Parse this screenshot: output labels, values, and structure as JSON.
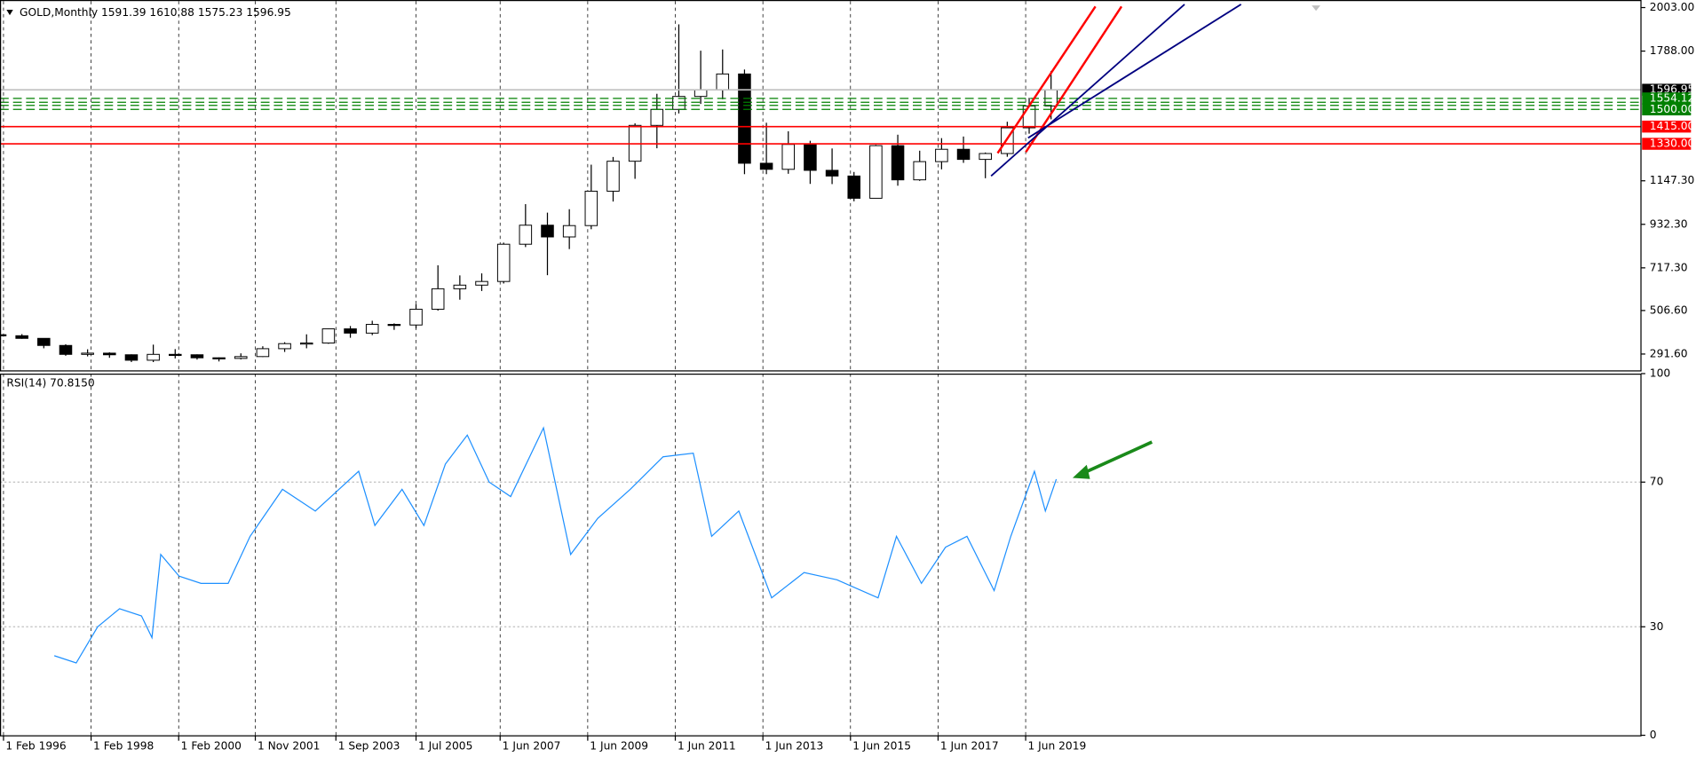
{
  "chart_data": [
    {
      "type": "candlestick",
      "title": "GOLD,Monthly  1591.39 1610.88 1575.23 1596.95",
      "x": [
        1996.0,
        1996.5,
        1997.0,
        1997.5,
        1998.0,
        1998.5,
        1999.0,
        1999.5,
        2000.0,
        2000.5,
        2001.0,
        2001.5,
        2002.0,
        2002.5,
        2003.0,
        2003.5,
        2004.0,
        2004.5,
        2005.0,
        2005.5,
        2006.0,
        2006.5,
        2007.0,
        2007.5,
        2008.0,
        2008.5,
        2009.0,
        2009.5,
        2010.0,
        2010.5,
        2011.0,
        2011.5,
        2012.0,
        2012.5,
        2013.0,
        2013.5,
        2014.0,
        2014.5,
        2015.0,
        2015.5,
        2016.0,
        2016.5,
        2017.0,
        2017.5,
        2018.0,
        2018.5,
        2019.0,
        2019.5,
        2020.0
      ],
      "open": [
        387,
        382,
        369,
        334,
        290,
        296,
        288,
        261,
        290,
        288,
        273,
        270,
        279,
        318,
        343,
        346,
        416,
        395,
        438,
        435,
        513,
        614,
        632,
        650,
        834,
        928,
        870,
        926,
        1096,
        1244,
        1421,
        1500,
        1564,
        1597,
        1675,
        1234,
        1204,
        1327,
        1199,
        1171,
        1061,
        1321,
        1152,
        1242,
        1303,
        1253,
        1282,
        1409,
        1517
      ],
      "high": [
        415,
        390,
        370,
        340,
        315,
        300,
        290,
        338,
        316,
        290,
        275,
        295,
        330,
        350,
        389,
        417,
        430,
        456,
        443,
        538,
        730,
        680,
        690,
        842,
        1032,
        990,
        1007,
        1227,
        1265,
        1431,
        1577,
        1920,
        1790,
        1796,
        1697,
        1434,
        1392,
        1345,
        1307,
        1191,
        1325,
        1375,
        1296,
        1358,
        1366,
        1287,
        1439,
        1557,
        1690
      ],
      "low": [
        380,
        367,
        320,
        283,
        280,
        273,
        252,
        252,
        270,
        264,
        255,
        265,
        277,
        302,
        320,
        342,
        372,
        385,
        411,
        418,
        506,
        560,
        603,
        640,
        820,
        681,
        810,
        908,
        1045,
        1157,
        1308,
        1480,
        1527,
        1550,
        1180,
        1180,
        1182,
        1132,
        1131,
        1046,
        1061,
        1123,
        1147,
        1204,
        1236,
        1160,
        1266,
        1380,
        1451
      ],
      "close": [
        382,
        369,
        334,
        290,
        296,
        288,
        261,
        290,
        288,
        273,
        270,
        279,
        318,
        343,
        346,
        416,
        395,
        438,
        435,
        513,
        614,
        632,
        650,
        834,
        928,
        870,
        926,
        1096,
        1244,
        1421,
        1500,
        1564,
        1597,
        1675,
        1234,
        1204,
        1327,
        1199,
        1171,
        1061,
        1321,
        1152,
        1242,
        1303,
        1253,
        1282,
        1409,
        1517,
        1596.95
      ],
      "up_color": "#ffffff",
      "down_color": "#000000",
      "outline": "#000000",
      "xlim": [
        1996.0,
        2033.47
      ],
      "ylim": [
        211,
        2035
      ],
      "yticks": [
        {
          "value": 2003,
          "label": "2003.00"
        },
        {
          "value": 1788,
          "label": "1788.00"
        },
        {
          "value": 1147.3,
          "label": "1147.30"
        },
        {
          "value": 932.3,
          "label": "932.30"
        },
        {
          "value": 717.3,
          "label": "717.30"
        },
        {
          "value": 506.6,
          "label": "506.60"
        },
        {
          "value": 291.6,
          "label": "291.60"
        }
      ],
      "xticks": [
        {
          "value": 1996.08,
          "label": "1 Feb 1996"
        },
        {
          "value": 1998.08,
          "label": "1 Feb 1998"
        },
        {
          "value": 2000.08,
          "label": "1 Feb 2000"
        },
        {
          "value": 2001.83,
          "label": "1 Nov 2001"
        },
        {
          "value": 2003.67,
          "label": "1 Sep 2003"
        },
        {
          "value": 2005.5,
          "label": "1 Jul 2005"
        },
        {
          "value": 2007.42,
          "label": "1 Jun 2007"
        },
        {
          "value": 2009.42,
          "label": "1 Jun 2009"
        },
        {
          "value": 2011.42,
          "label": "1 Jun 2011"
        },
        {
          "value": 2013.42,
          "label": "1 Jun 2013"
        },
        {
          "value": 2015.42,
          "label": "1 Jun 2015"
        },
        {
          "value": 2017.42,
          "label": "1 Jun 2017"
        },
        {
          "value": 2019.42,
          "label": "1 Jun 2019"
        }
      ],
      "grid": true,
      "levels": [
        {
          "price": 1596.95,
          "label": "1596.95",
          "color": "#c0c0c0",
          "badge": "#000000",
          "dashed": false
        },
        {
          "price": 1554.12,
          "label": "1554.12",
          "color": "#008000",
          "badge": "#008000",
          "dashed": true
        },
        {
          "price": 1535,
          "color": "#008000",
          "dashed": true
        },
        {
          "price": 1520,
          "color": "#008000",
          "dashed": true
        },
        {
          "price": 1500,
          "label": "1500.00",
          "color": "#008000",
          "badge": "#008000",
          "dashed": true
        },
        {
          "price": 1415,
          "label": "1415.00",
          "color": "#ff0000",
          "badge": "#ff0000",
          "dashed": false
        },
        {
          "price": 1330,
          "label": "1330.00",
          "color": "#ff0000",
          "badge": "#ff0000",
          "dashed": false
        }
      ]
    },
    {
      "type": "line",
      "title": "RSI(14) 70.8150",
      "x": [
        1997.24,
        1997.74,
        1998.23,
        1998.73,
        1999.23,
        1999.47,
        1999.67,
        2000.09,
        2000.59,
        2001.21,
        2001.71,
        2002.45,
        2003.2,
        2004.19,
        2004.56,
        2005.18,
        2005.68,
        2006.17,
        2006.67,
        2007.17,
        2007.66,
        2008.41,
        2009.03,
        2009.65,
        2010.39,
        2011.14,
        2011.83,
        2012.25,
        2012.87,
        2013.62,
        2014.36,
        2015.11,
        2016.05,
        2016.47,
        2017.04,
        2017.59,
        2018.08,
        2018.7,
        2019.08,
        2019.62,
        2019.87,
        2020.12
      ],
      "values": [
        22,
        20,
        30,
        35,
        33,
        27,
        50,
        44,
        42,
        42,
        55,
        68,
        62,
        73,
        58,
        68,
        58,
        75,
        83,
        70,
        66,
        85,
        50,
        60,
        68,
        77,
        78,
        55,
        62,
        38,
        45,
        43,
        38,
        55,
        42,
        52,
        55,
        40,
        55,
        73,
        62,
        70.815
      ],
      "color": "#1e90ff",
      "xlim": [
        1996.0,
        2033.47
      ],
      "ylim": [
        0,
        100
      ],
      "yticks": [
        100,
        70,
        30,
        0
      ],
      "grid": true
    }
  ]
}
